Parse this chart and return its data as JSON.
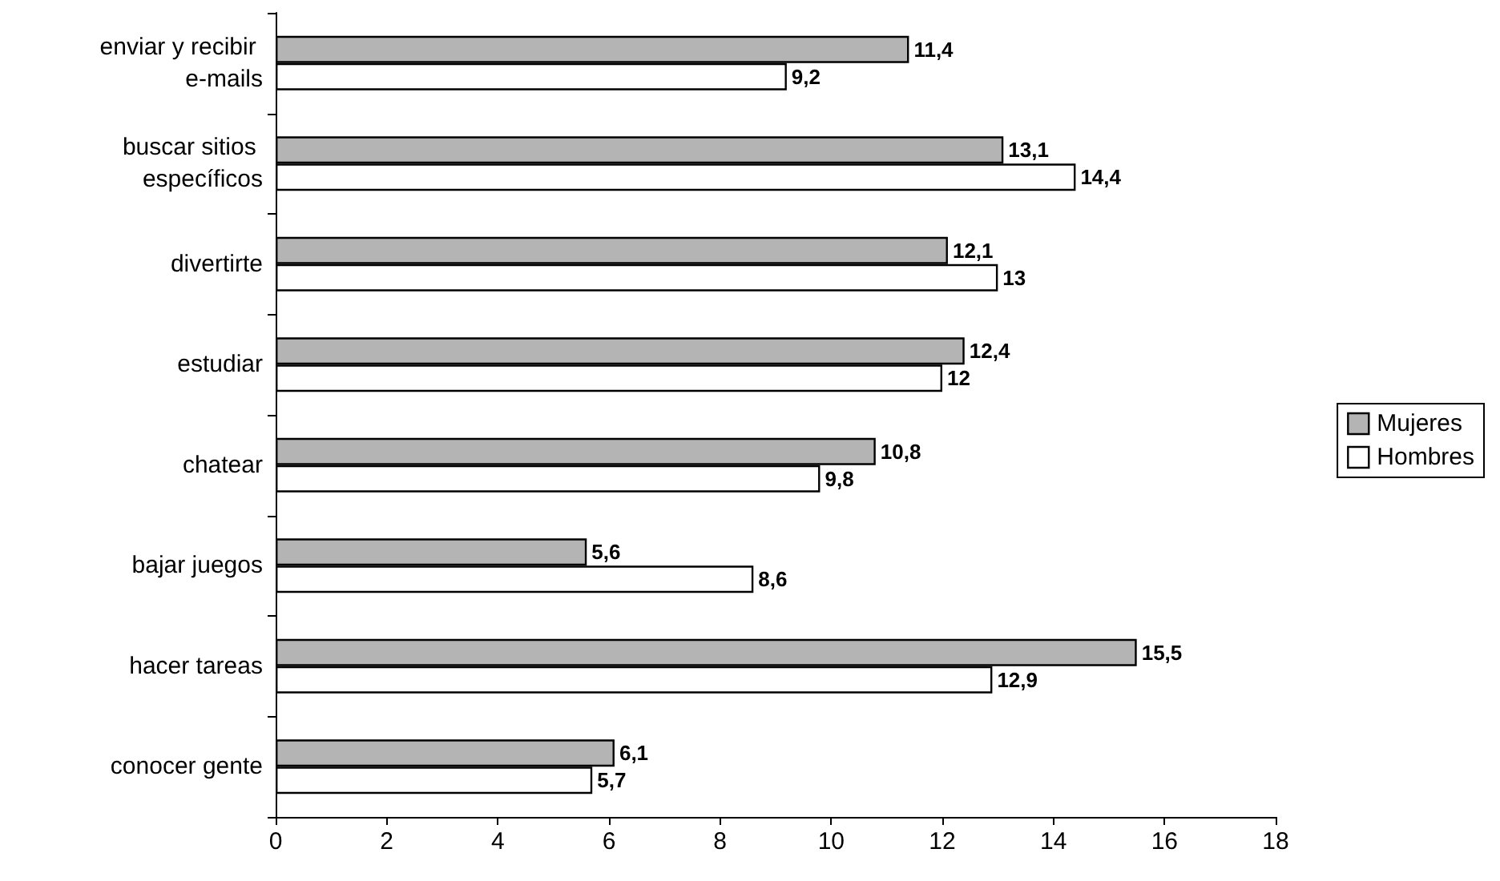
{
  "chart_data": {
    "type": "bar",
    "orientation": "horizontal",
    "categories": [
      "enviar y recibir e-mails",
      "buscar sitios específicos",
      "divertirte",
      "estudiar",
      "chatear",
      "bajar juegos",
      "hacer tareas",
      "conocer gente"
    ],
    "series": [
      {
        "name": "Mujeres",
        "color": "#b4b4b4",
        "values": [
          11.4,
          13.1,
          12.1,
          12.4,
          10.8,
          5.6,
          15.5,
          6.1
        ],
        "value_labels": [
          "11,4",
          "13,1",
          "12,1",
          "12,4",
          "10,8",
          "5,6",
          "15,5",
          "6,1"
        ]
      },
      {
        "name": "Hombres",
        "color": "#ffffff",
        "values": [
          9.2,
          14.4,
          13,
          12,
          9.8,
          8.6,
          12.9,
          5.7
        ],
        "value_labels": [
          "9,2",
          "14,4",
          "13",
          "12",
          "9,8",
          "8,6",
          "12,9",
          "5,7"
        ]
      }
    ],
    "xlim": [
      0,
      18
    ],
    "xticks": [
      0,
      2,
      4,
      6,
      8,
      10,
      12,
      14,
      16,
      18
    ],
    "grid": false,
    "legend": "right"
  }
}
